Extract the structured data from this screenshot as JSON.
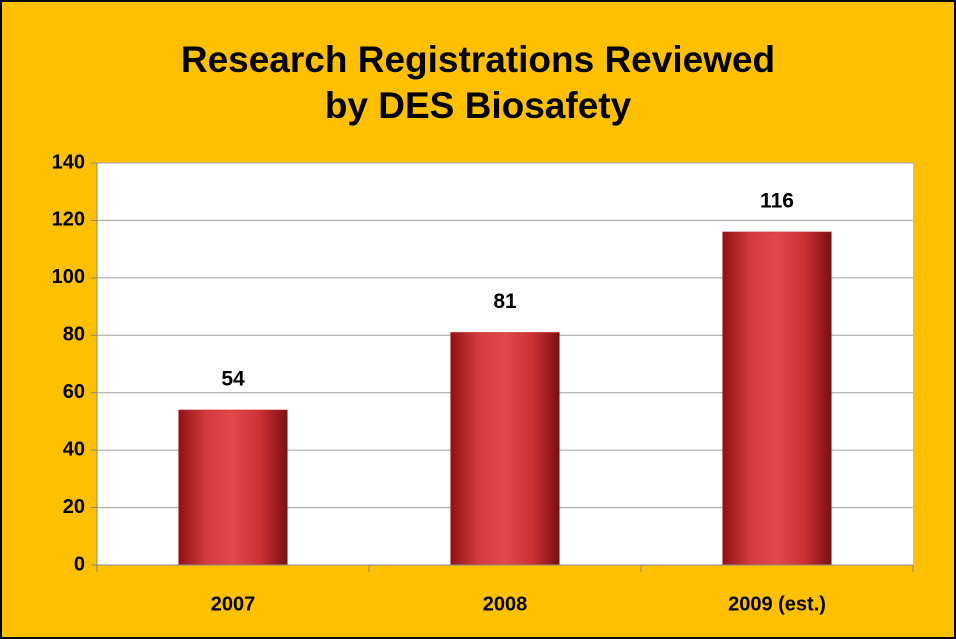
{
  "chart_data": {
    "type": "bar",
    "title": [
      "Research Registrations Reviewed",
      "by DES Biosafety"
    ],
    "categories": [
      "2007",
      "2008",
      "2009 (est.)"
    ],
    "values": [
      54,
      81,
      116
    ],
    "color": "#c8282e",
    "ylim": [
      0,
      140
    ],
    "yticks": [
      0,
      20,
      40,
      60,
      80,
      100,
      120,
      140
    ],
    "grid": true
  }
}
